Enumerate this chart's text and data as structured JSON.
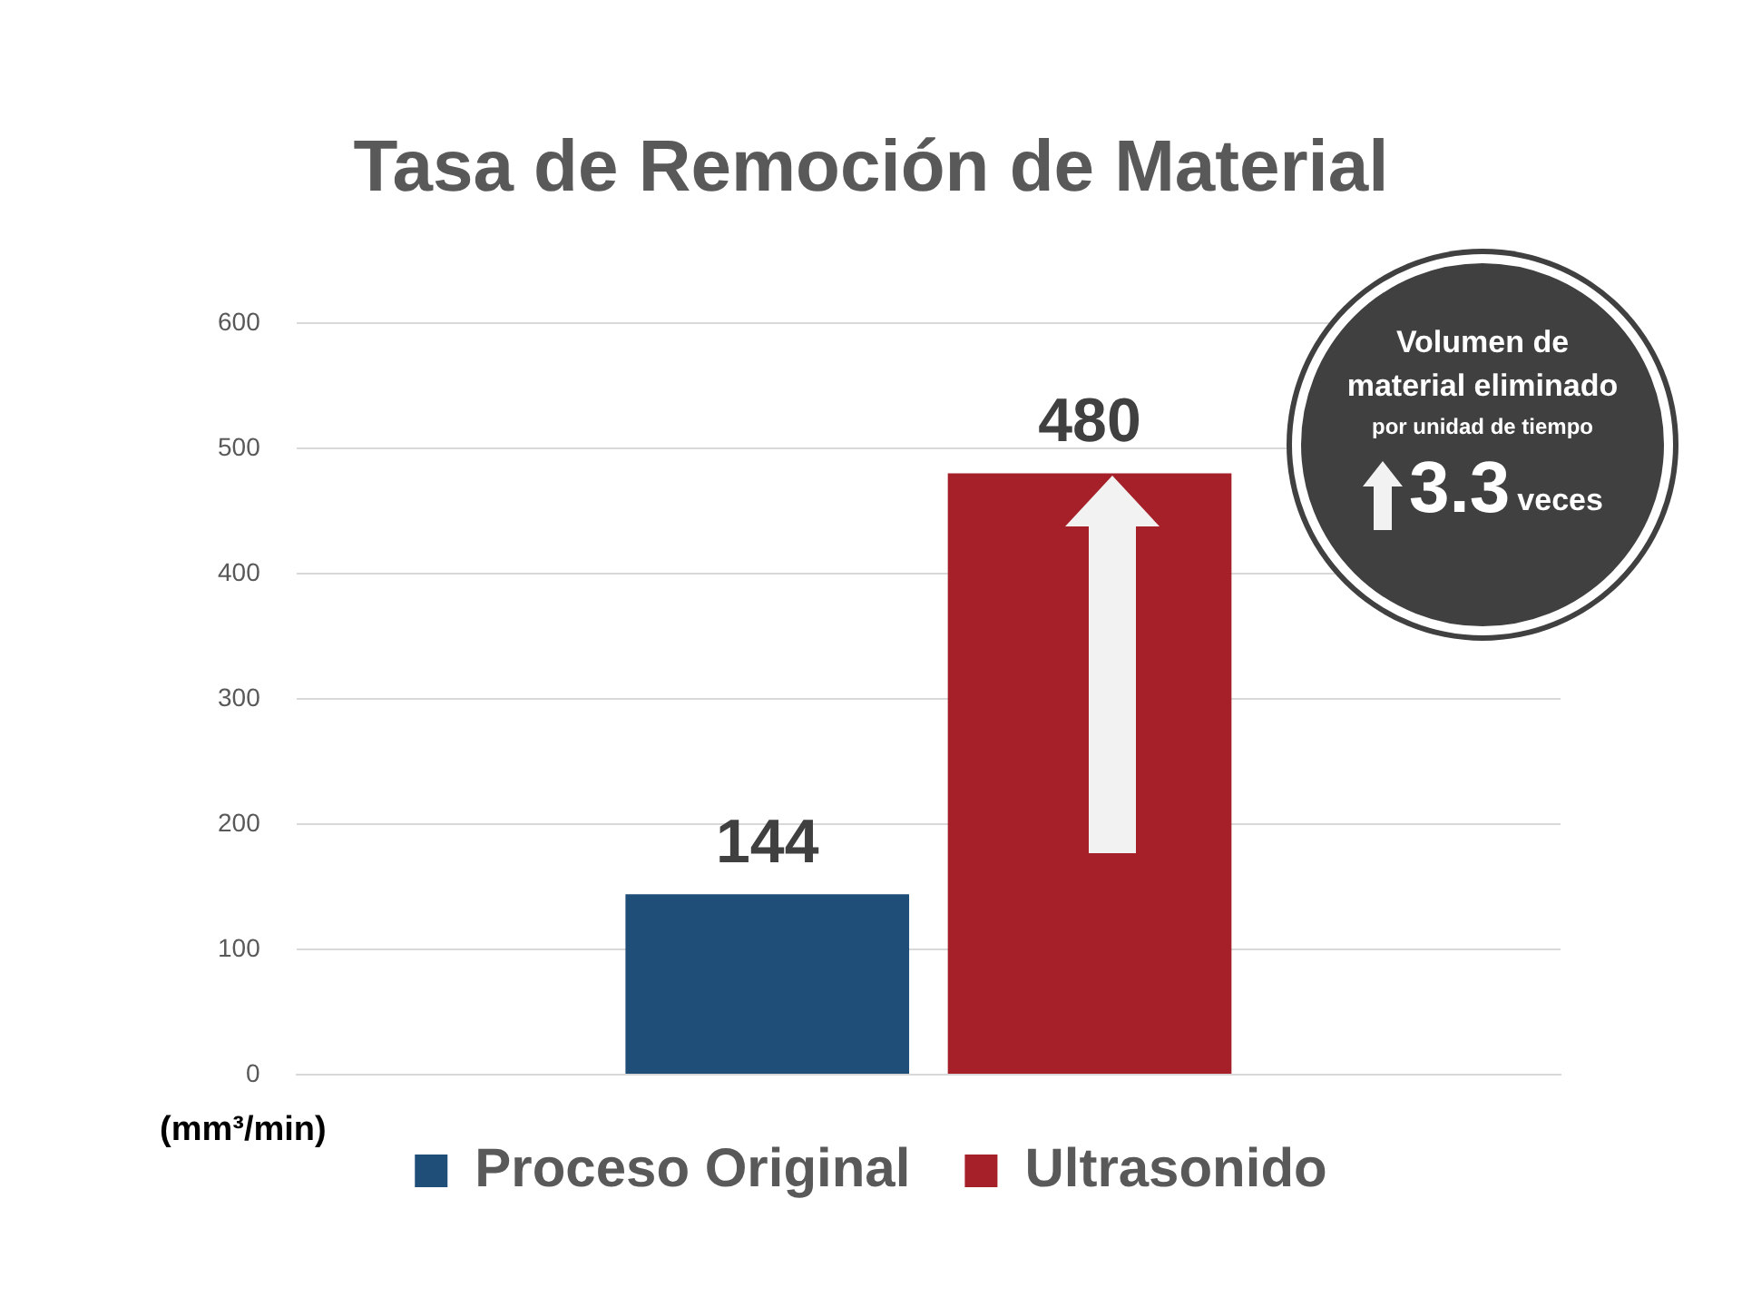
{
  "chart_data": {
    "type": "bar",
    "title": "Tasa de Remoción de Material",
    "ylabel": "(mm³/min)",
    "categories": [
      null
    ],
    "series": [
      {
        "name": "Proceso Original",
        "color": "#1f4e79",
        "values": [
          144
        ]
      },
      {
        "name": "Ultrasonido",
        "color": "#a52028",
        "values": [
          480
        ]
      }
    ],
    "ylim": [
      0,
      600
    ],
    "yticks": [
      0,
      100,
      200,
      300,
      400,
      500,
      600
    ],
    "grid": "y",
    "legend": "bottom",
    "data_labels": true,
    "annotations": [
      "Volumen de",
      "material eliminado",
      "por unidad de tiempo",
      "3.3",
      "veces"
    ]
  }
}
